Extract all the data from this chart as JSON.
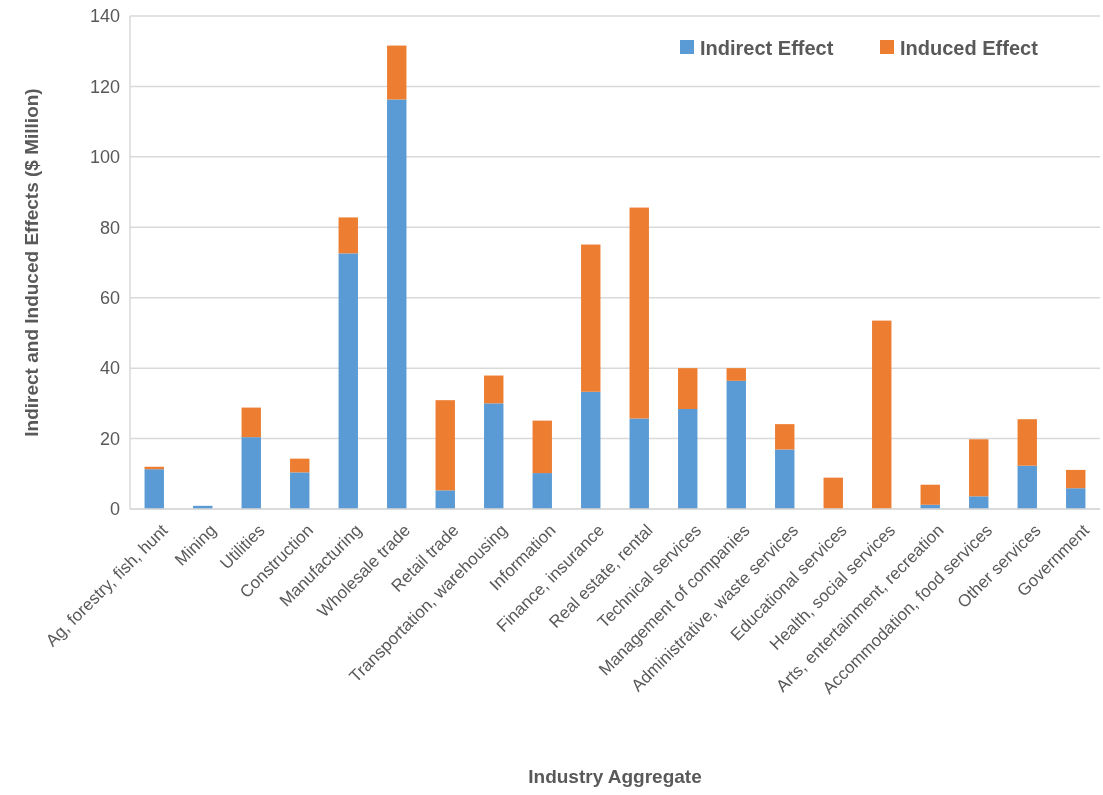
{
  "chart_data": {
    "type": "bar",
    "stacked": true,
    "xlabel": "Industry Aggregate",
    "ylabel": "Indirect and Induced Effects ($ Million)",
    "categories": [
      "Ag, forestry, fish, hunt",
      "Mining",
      "Utilities",
      "Construction",
      "Manufacturing",
      "Wholesale trade",
      "Retail trade",
      "Transportation, warehousing",
      "Information",
      "Finance, insurance",
      "Real estate, rental",
      "Technical services",
      "Management of companies",
      "Administrative, waste services",
      "Educational services",
      "Health, social services",
      "Arts, entertainment, recreation",
      "Accommodation, food services",
      "Other services",
      "Government"
    ],
    "series": [
      {
        "name": "Indirect Effect",
        "color": "#5b9bd5",
        "values": [
          11.3,
          0.9,
          20.4,
          10.4,
          72.6,
          116.3,
          5.3,
          30.0,
          10.2,
          33.3,
          25.7,
          28.4,
          36.4,
          16.9,
          0,
          0,
          1.2,
          3.6,
          12.3,
          5.9
        ]
      },
      {
        "name": "Induced Effect",
        "color": "#ed7d31",
        "values": [
          0.7,
          0,
          8.4,
          3.9,
          10.2,
          15.3,
          25.6,
          7.9,
          14.9,
          41.8,
          59.9,
          11.6,
          3.6,
          7.2,
          8.9,
          53.5,
          5.7,
          16.2,
          13.2,
          5.2
        ]
      }
    ],
    "ylim": [
      0,
      140
    ],
    "yticks": [
      0,
      20,
      40,
      60,
      80,
      100,
      120,
      140
    ],
    "grid": "y",
    "legend": "top right"
  }
}
